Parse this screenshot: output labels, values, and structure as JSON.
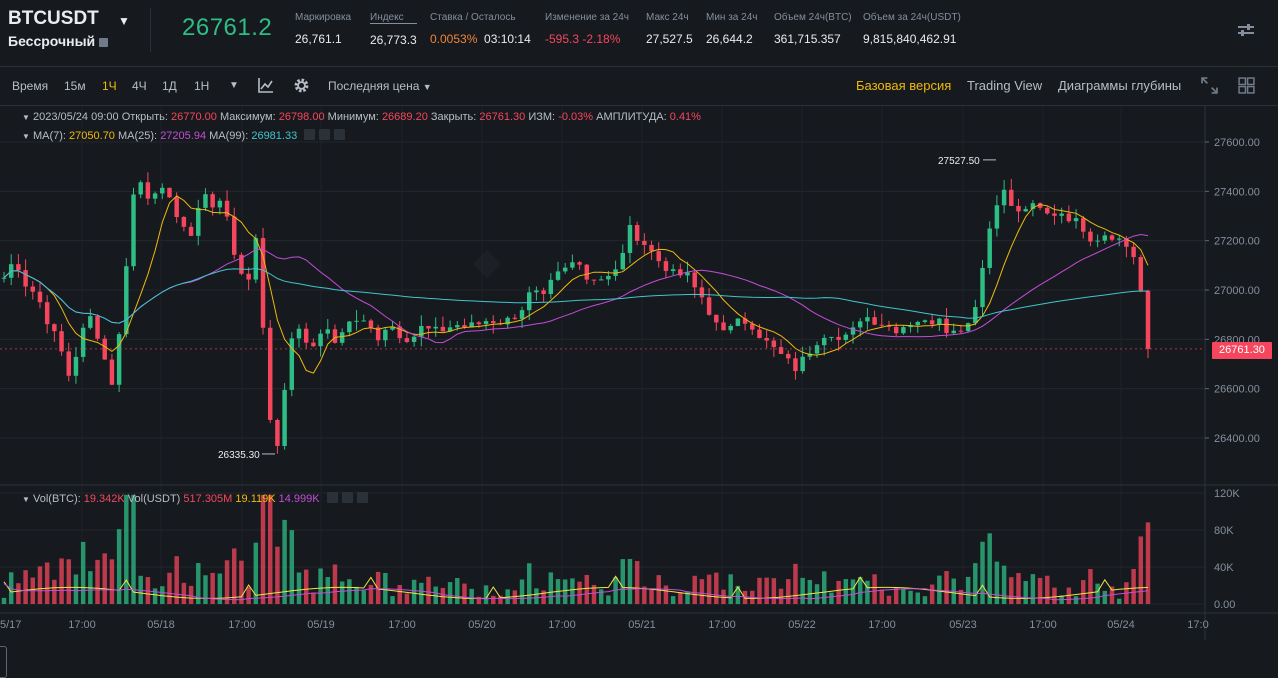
{
  "header": {
    "symbol": "BTCUSDT",
    "contract_type": "Бессрочный",
    "last_price": "26761.2",
    "stats": [
      {
        "label": "Маркировка",
        "value": "26,761.1"
      },
      {
        "label": "Индекс",
        "value": "26,773.3"
      },
      {
        "label": "Ставка / Осталось",
        "value": "0.0053%",
        "value2": "03:10:14"
      },
      {
        "label": "Изменение за 24ч",
        "value": "-595.3 -2.18%"
      },
      {
        "label": "Макс 24ч",
        "value": "27,527.5"
      },
      {
        "label": "Мин за 24ч",
        "value": "26,644.2"
      },
      {
        "label": "Объем 24ч(BTC)",
        "value": "361,715.357"
      },
      {
        "label": "Объем за 24ч(USDT)",
        "value": "9,815,840,462.91"
      }
    ]
  },
  "toolbar": {
    "time_label": "Время",
    "intervals": [
      "15м",
      "1Ч",
      "4Ч",
      "1Д",
      "1Н"
    ],
    "active_interval": "1Ч",
    "price_type": "Последняя цена",
    "views": [
      "Базовая версия",
      "Trading View",
      "Диаграммы глубины"
    ],
    "active_view": "Базовая версия"
  },
  "ohlc_legend": {
    "datetime": "2023/05/24 09:00",
    "open_label": "Открыть:",
    "open": "26770.00",
    "high_label": "Максимум:",
    "high": "26798.00",
    "low_label": "Минимум:",
    "low": "26689.20",
    "close_label": "Закрыть:",
    "close": "26761.30",
    "change_label": "ИЗМ:",
    "change": "-0.03%",
    "amplitude_label": "АМПЛИТУДА:",
    "amplitude": "0.41%"
  },
  "ma_legend": {
    "ma7_label": "MA(7):",
    "ma7": "27050.70",
    "ma25_label": "MA(25):",
    "ma25": "27205.94",
    "ma99_label": "MA(99):",
    "ma99": "26981.33"
  },
  "vol_legend": {
    "btc_label": "Vol(BTC):",
    "btc": "19.342K",
    "usdt_label": "Vol(USDT)",
    "usdt": "517.305M",
    "ma1": "19.119K",
    "ma2": "14.999K"
  },
  "colors": {
    "up": "#2ebd85",
    "down": "#f6465d",
    "accent": "#f0b90b",
    "ma7": "#f0b90b",
    "ma25": "#c34dd8",
    "ma99": "#3fc5cf"
  },
  "icons": {
    "symbol_menu": "caret-down-icon",
    "filter": "sliders-icon",
    "indicators": "line-chart-icon",
    "settings": "gear-icon",
    "fullscreen": "expand-icon",
    "layout": "grid-icon"
  },
  "chart_data": {
    "type": "candlestick",
    "interval": "1h",
    "current_price_label": "26761.30",
    "y_ticks": [
      27600,
      27400,
      27200,
      27000,
      26800,
      26600,
      26400
    ],
    "y_tick_labels": [
      "27600.00",
      "27400.00",
      "27200.00",
      "27000.00",
      "26800.00",
      "26600.00",
      "26400.00"
    ],
    "vol_ticks": [
      "120K",
      "80K",
      "40K",
      "0.00"
    ],
    "x_labels": [
      "5/17",
      "17:00",
      "05/18",
      "17:00",
      "05/19",
      "17:00",
      "05/20",
      "17:00",
      "05/21",
      "17:00",
      "05/22",
      "17:00",
      "05/23",
      "17:00",
      "05/24",
      "17:0"
    ],
    "annotations": [
      {
        "text": "27527.50",
        "value": 27527.5
      },
      {
        "text": "26335.30",
        "value": 26335.3
      }
    ],
    "closes": [
      27050,
      27130,
      27020,
      26980,
      26870,
      26780,
      26640,
      26820,
      26900,
      26740,
      26600,
      27060,
      27480,
      27380,
      27420,
      27360,
      27290,
      27200,
      27420,
      27330,
      27370,
      27140,
      26980,
      27250,
      26510,
      26360,
      26800,
      26860,
      26740,
      26860,
      26780,
      26860,
      26880,
      26860,
      26810,
      26870,
      26820,
      26800,
      26850,
      26830,
      26840,
      26860,
      26850,
      26860,
      26880,
      26870,
      26880,
      26920,
      27000,
      26960,
      27050,
      27080,
      27120,
      27060,
      27040,
      27070,
      27100,
      27270,
      27160,
      27180,
      27070,
      27090,
      27060,
      27000,
      26900,
      26860,
      26840,
      26880,
      26860,
      26800,
      26760,
      26720,
      26680,
      26740,
      26800,
      26840,
      26790,
      26820,
      26900,
      26880,
      26860,
      26840,
      26860,
      26880,
      26860,
      26900,
      26820,
      26850,
      26880,
      27100,
      27350,
      27400,
      27300,
      27340,
      27330,
      27300,
      27320,
      27290,
      27260,
      27200,
      27230,
      27220,
      27180,
      27120,
      26761
    ]
  }
}
